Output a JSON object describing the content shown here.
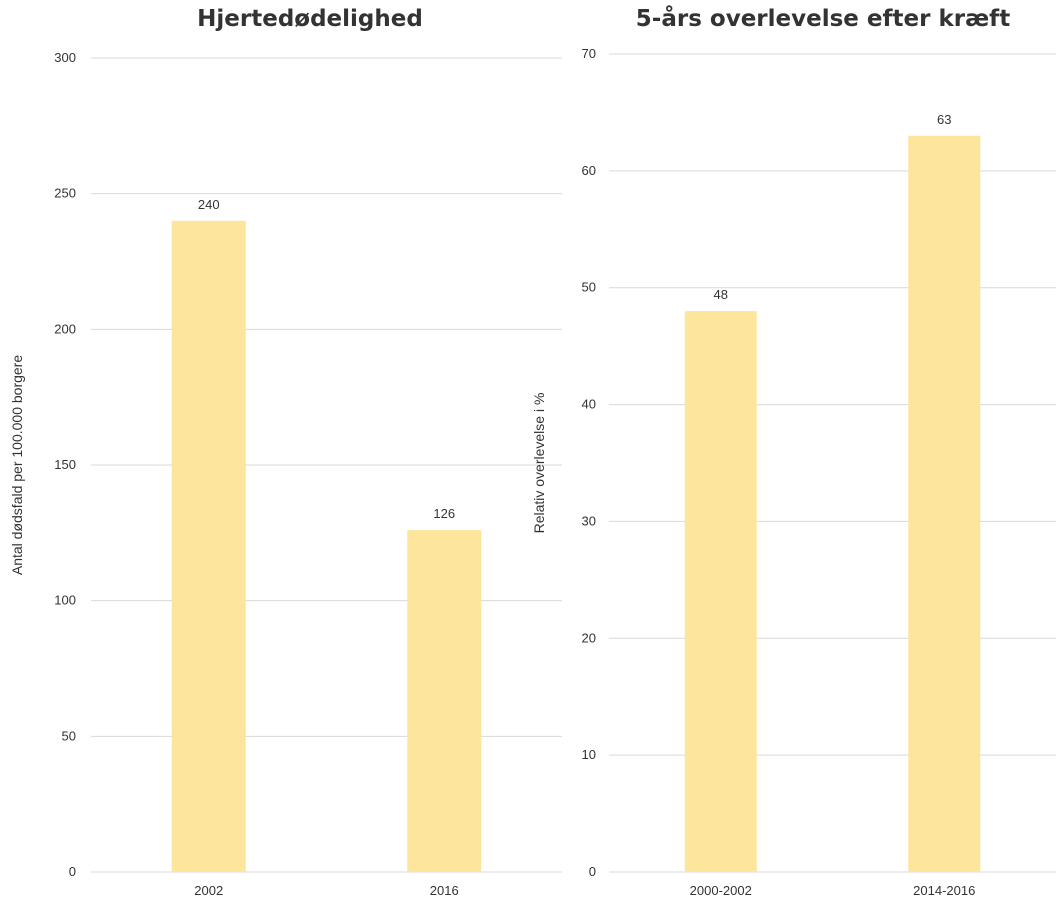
{
  "chart_data": [
    {
      "type": "bar",
      "title": "Hjertedødelighed",
      "ylabel": "Antal dødsfald per 100.000 borgere",
      "xlabel": "",
      "categories": [
        "2002",
        "2016"
      ],
      "values": [
        240,
        126
      ],
      "data_labels": [
        "240",
        "126"
      ],
      "ylim": [
        0,
        300
      ],
      "yticks": [
        "0",
        "50",
        "100",
        "150",
        "200",
        "250",
        "300"
      ],
      "grid": true,
      "bar_color": "#fde69b"
    },
    {
      "type": "bar",
      "title": "5-års overlevelse efter kræft",
      "ylabel": "Relativ overlevelse i %",
      "xlabel": "",
      "categories": [
        "2000-2002",
        "2014-2016"
      ],
      "values": [
        48,
        63
      ],
      "data_labels": [
        "48",
        "63"
      ],
      "ylim": [
        0,
        70
      ],
      "yticks": [
        "0",
        "10",
        "20",
        "30",
        "40",
        "50",
        "60",
        "70"
      ],
      "grid": true,
      "bar_color": "#fde69b"
    }
  ]
}
